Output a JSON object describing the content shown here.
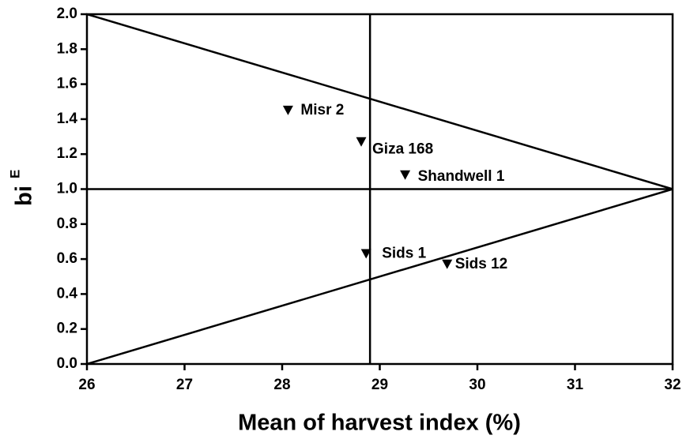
{
  "chart_data": {
    "type": "scatter",
    "xlabel": "Mean of harvest index (%)",
    "ylabel": "bi",
    "ylabel_sup": "E",
    "points": [
      {
        "name": "Misr 2",
        "x": 28.06,
        "y": 1.45
      },
      {
        "name": "Giza 168",
        "x": 28.81,
        "y": 1.27
      },
      {
        "name": "Shandwell 1",
        "x": 29.26,
        "y": 1.08
      },
      {
        "name": "Sids 1",
        "x": 28.86,
        "y": 0.63
      },
      {
        "name": "Sids 12",
        "x": 29.69,
        "y": 0.57
      }
    ],
    "reference_lines": [
      {
        "x": [
          28.9,
          28.9
        ],
        "y": [
          0,
          2
        ]
      },
      {
        "x": [
          26,
          32
        ],
        "y": [
          1,
          1
        ]
      },
      {
        "x": [
          26,
          32
        ],
        "y": [
          2,
          1
        ]
      },
      {
        "x": [
          26,
          32
        ],
        "y": [
          0,
          1
        ]
      }
    ],
    "color": "#000000",
    "xlim": [
      26,
      32
    ],
    "ylim": [
      0,
      2
    ],
    "xticks": [
      26,
      27,
      28,
      29,
      30,
      31,
      32
    ],
    "yticks": [
      {
        "value": 0,
        "label": "0.0"
      },
      0.2,
      0.4,
      0.6,
      0.8,
      {
        "value": 1,
        "label": "1.0"
      },
      1.2,
      1.4,
      1.6,
      1.8,
      {
        "value": 2,
        "label": "2.0"
      }
    ]
  }
}
